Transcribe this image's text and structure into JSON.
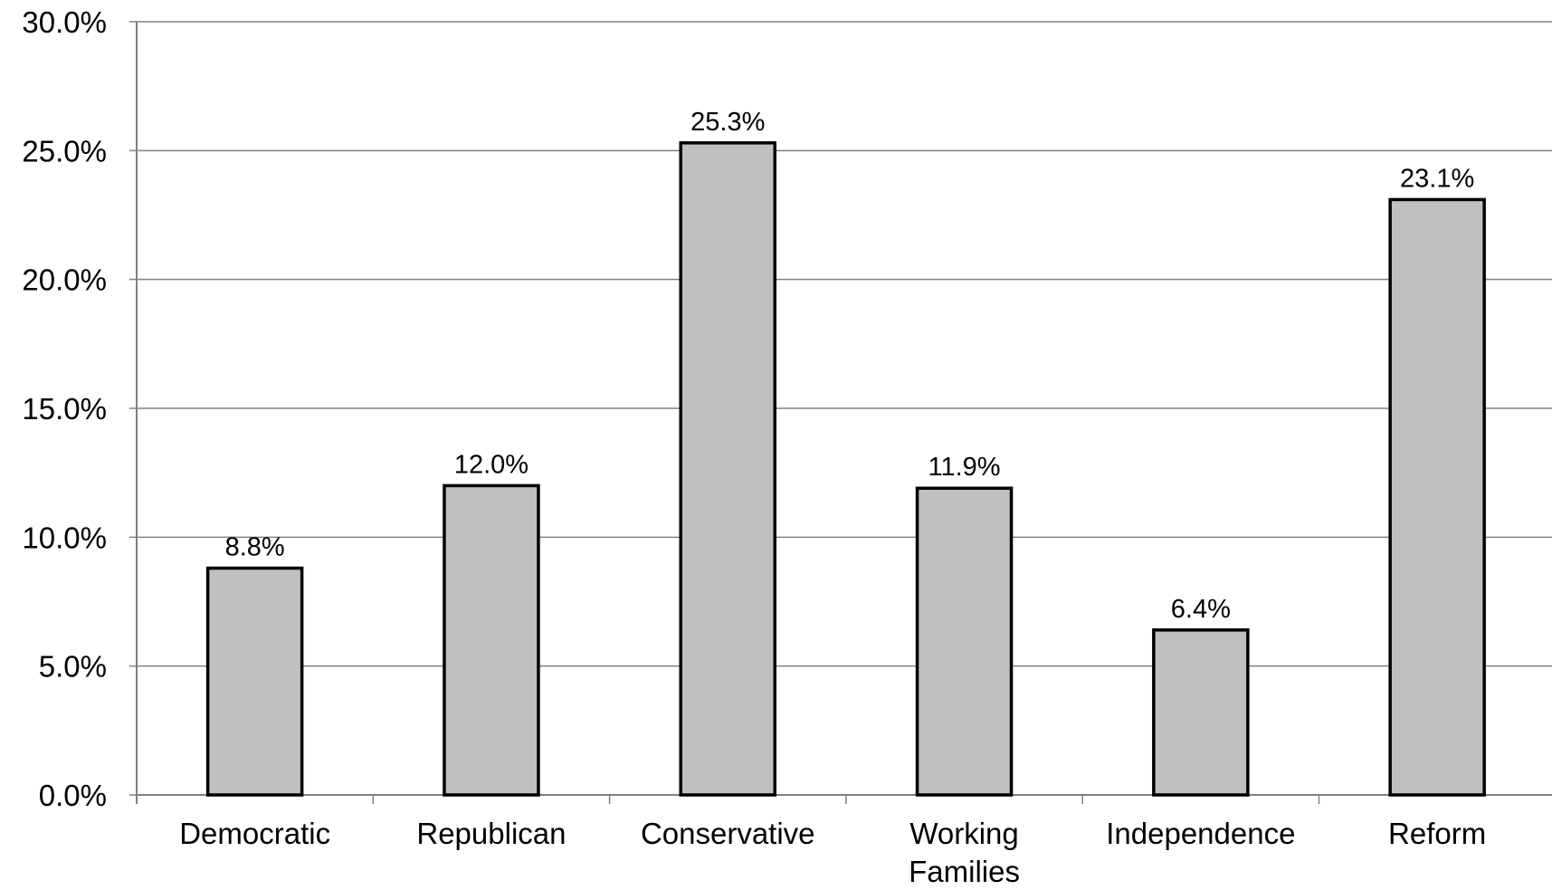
{
  "chart_data": {
    "type": "bar",
    "title": "",
    "xlabel": "",
    "ylabel": "",
    "categories": [
      [
        "Democratic"
      ],
      [
        "Republican"
      ],
      [
        "Conservative"
      ],
      [
        "Working",
        "Families"
      ],
      [
        "Independence"
      ],
      [
        "Reform"
      ]
    ],
    "values": [
      8.8,
      12.0,
      25.3,
      11.9,
      6.4,
      23.1
    ],
    "data_labels": [
      "8.8%",
      "12.0%",
      "25.3%",
      "11.9%",
      "6.4%",
      "23.1%"
    ],
    "y_ticks": [
      {
        "value": 0,
        "label": "0.0%"
      },
      {
        "value": 5,
        "label": "5.0%"
      },
      {
        "value": 10,
        "label": "10.0%"
      },
      {
        "value": 15,
        "label": "15.0%"
      },
      {
        "value": 20,
        "label": "20.0%"
      },
      {
        "value": 25,
        "label": "25.0%"
      },
      {
        "value": 30,
        "label": "30.0%"
      }
    ],
    "ylim": [
      0,
      30
    ],
    "grid": true,
    "legend": "none",
    "colors": {
      "bar_fill": "#c0c0c0",
      "bar_stroke": "#000000",
      "grid": "#808080",
      "axis": "#808080"
    }
  }
}
